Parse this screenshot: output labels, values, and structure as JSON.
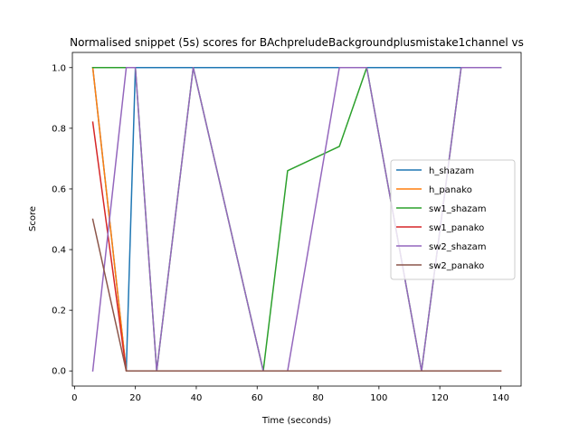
{
  "chart_data": {
    "type": "line",
    "title": "Normalised snippet (5s) scores for BAchpreludeBackgroundplusmistake1channel vs",
    "xlabel": "Time (seconds)",
    "ylabel": "Score",
    "xlim": [
      -0.7,
      146.7
    ],
    "ylim": [
      -0.05,
      1.05
    ],
    "xticks": [
      0,
      20,
      40,
      60,
      80,
      100,
      120,
      140
    ],
    "xtick_labels": [
      "0",
      "20",
      "40",
      "60",
      "80",
      "100",
      "120",
      "140"
    ],
    "yticks": [
      0.0,
      0.2,
      0.4,
      0.6,
      0.8,
      1.0
    ],
    "ytick_labels": [
      "0.0",
      "0.2",
      "0.4",
      "0.6",
      "0.8",
      "1.0"
    ],
    "grid": false,
    "legend_position": "center-right",
    "series": [
      {
        "name": "h_shazam",
        "color": "#1f77b4",
        "x": [
          6,
          17,
          20,
          27,
          39,
          62,
          70,
          87,
          96,
          114,
          127,
          140
        ],
        "y": [
          1.0,
          0.0,
          1.0,
          1.0,
          1.0,
          1.0,
          1.0,
          1.0,
          1.0,
          1.0,
          1.0,
          1.0
        ]
      },
      {
        "name": "h_panako",
        "color": "#ff7f0e",
        "x": [
          6,
          17,
          20,
          27,
          39,
          62,
          70,
          87,
          96,
          114,
          127,
          140
        ],
        "y": [
          1.0,
          0.0,
          0.0,
          0.0,
          0.0,
          0.0,
          0.0,
          0.0,
          0.0,
          0.0,
          0.0,
          0.0
        ]
      },
      {
        "name": "sw1_shazam",
        "color": "#2ca02c",
        "x": [
          6,
          17,
          20,
          27,
          39,
          62,
          70,
          87,
          96,
          114,
          127,
          140
        ],
        "y": [
          1.0,
          1.0,
          1.0,
          0.0,
          1.0,
          0.0,
          0.66,
          0.74,
          1.0,
          0.0,
          1.0,
          1.0
        ]
      },
      {
        "name": "sw1_panako",
        "color": "#d62728",
        "x": [
          6,
          17,
          20,
          27,
          39,
          62,
          70,
          87,
          96,
          114,
          127,
          140
        ],
        "y": [
          0.82,
          0.0,
          0.0,
          0.0,
          0.0,
          0.0,
          0.0,
          0.0,
          0.0,
          0.0,
          0.0,
          0.0
        ]
      },
      {
        "name": "sw2_shazam",
        "color": "#9467bd",
        "x": [
          6,
          17,
          20,
          27,
          39,
          62,
          70,
          87,
          96,
          114,
          127,
          140
        ],
        "y": [
          0.0,
          1.0,
          1.0,
          0.0,
          1.0,
          0.0,
          0.0,
          1.0,
          1.0,
          0.0,
          1.0,
          1.0
        ]
      },
      {
        "name": "sw2_panako",
        "color": "#8c564b",
        "x": [
          6,
          17,
          20,
          27,
          39,
          62,
          70,
          87,
          96,
          114,
          127,
          140
        ],
        "y": [
          0.5,
          0.0,
          0.0,
          0.0,
          0.0,
          0.0,
          0.0,
          0.0,
          0.0,
          0.0,
          0.0,
          0.0
        ]
      }
    ]
  }
}
